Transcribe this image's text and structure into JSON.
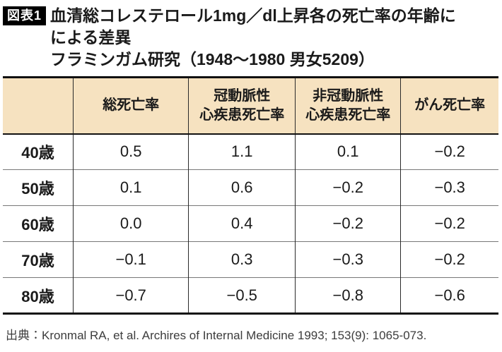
{
  "figure": {
    "badge": "図表1",
    "title_line1": "血清総コレステロール1mg／dl上昇各の死亡率の年齢に",
    "title_line2": "による差異",
    "subtitle": "フラミンガム研究（1948〜1980 男女5209）",
    "source": "出典：Kronmal RA, et al. Archires of Internal Medicine 1993; 153(9): 1065-073."
  },
  "table": {
    "columns": [
      "",
      "総死亡率",
      "冠動脈性\n心疾患死亡率",
      "非冠動脈性\n心疾患死亡率",
      "がん死亡率"
    ],
    "rows": [
      {
        "age": "40歳",
        "values": [
          "0.5",
          "1.1",
          "0.1",
          "−0.2"
        ]
      },
      {
        "age": "50歳",
        "values": [
          "0.1",
          "0.6",
          "−0.2",
          "−0.3"
        ]
      },
      {
        "age": "60歳",
        "values": [
          "0.0",
          "0.4",
          "−0.2",
          "−0.2"
        ]
      },
      {
        "age": "70歳",
        "values": [
          "−0.1",
          "0.3",
          "−0.3",
          "−0.2"
        ]
      },
      {
        "age": "80歳",
        "values": [
          "−0.7",
          "−0.5",
          "−0.8",
          "−0.6"
        ]
      }
    ]
  },
  "colors": {
    "header_bg": "#f6e2c0",
    "border_heavy": "#111111",
    "border_row": "#787878",
    "border_column": "#2a2a2a",
    "badge_bg": "#000000",
    "badge_text": "#ffffff",
    "source_text": "#3c3c3c"
  },
  "chart_data": {
    "type": "table",
    "title": "血清総コレステロール1mg／dl上昇各の死亡率の年齢による差異",
    "subtitle": "フラミンガム研究（1948〜1980 男女5209）",
    "categories": [
      "40歳",
      "50歳",
      "60歳",
      "70歳",
      "80歳"
    ],
    "series": [
      {
        "name": "総死亡率",
        "values": [
          0.5,
          0.1,
          0.0,
          -0.1,
          -0.7
        ]
      },
      {
        "name": "冠動脈性心疾患死亡率",
        "values": [
          1.1,
          0.6,
          0.4,
          0.3,
          -0.5
        ]
      },
      {
        "name": "非冠動脈性心疾患死亡率",
        "values": [
          0.1,
          -0.2,
          -0.2,
          -0.3,
          -0.8
        ]
      },
      {
        "name": "がん死亡率",
        "values": [
          -0.2,
          -0.3,
          -0.2,
          -0.2,
          -0.6
        ]
      }
    ],
    "source": "出典：Kronmal RA, et al. Archires of Internal Medicine 1993; 153(9): 1065-073."
  }
}
